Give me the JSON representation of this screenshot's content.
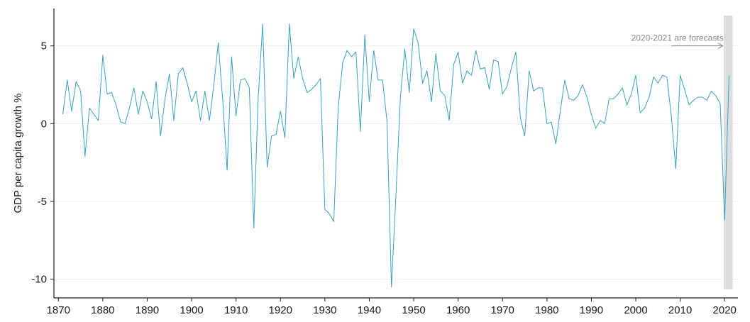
{
  "chart_data": {
    "type": "line",
    "title": "",
    "xlabel": "",
    "ylabel": "GDP per capita growth %",
    "xlim": [
      1869,
      2023
    ],
    "ylim": [
      -11.2,
      7.4
    ],
    "x_ticks": [
      1870,
      1880,
      1890,
      1900,
      1910,
      1920,
      1930,
      1940,
      1950,
      1960,
      1970,
      1980,
      1990,
      2000,
      2010,
      2020
    ],
    "y_ticks": [
      5,
      0,
      -5,
      -10
    ],
    "y_tick_labels": [
      "5",
      "0",
      "-5",
      "-10"
    ],
    "grid": "horizontal",
    "line_color": "#3aa0c0",
    "shade_color": "#dddddd",
    "forecast_band": [
      2019.8,
      2021.8
    ],
    "annotation": "2020-2021 are forecasts",
    "annotation_arrow": {
      "from": [
        2008,
        5.0
      ],
      "to": [
        2019.6,
        5.0
      ]
    },
    "series": [
      {
        "x": [
          1871,
          1872,
          1873,
          1874,
          1875,
          1876,
          1877,
          1878,
          1879,
          1880,
          1881,
          1882,
          1883,
          1884,
          1885,
          1886,
          1887,
          1888,
          1889,
          1890,
          1891,
          1892,
          1893,
          1894,
          1895,
          1896,
          1897,
          1898,
          1899,
          1900,
          1901,
          1902,
          1903,
          1904,
          1905,
          1906,
          1907,
          1908,
          1909,
          1910,
          1911,
          1912,
          1913,
          1914,
          1915,
          1916,
          1917,
          1918,
          1919,
          1920,
          1921,
          1922,
          1923,
          1924,
          1925,
          1926,
          1927,
          1928,
          1929,
          1930,
          1931,
          1932,
          1933,
          1934,
          1935,
          1936,
          1937,
          1938,
          1939,
          1940,
          1941,
          1942,
          1943,
          1944,
          1945,
          1946,
          1947,
          1948,
          1949,
          1950,
          1951,
          1952,
          1953,
          1954,
          1955,
          1956,
          1957,
          1958,
          1959,
          1960,
          1961,
          1962,
          1963,
          1964,
          1965,
          1966,
          1967,
          1968,
          1969,
          1970,
          1971,
          1972,
          1973,
          1974,
          1975,
          1976,
          1977,
          1978,
          1979,
          1980,
          1981,
          1982,
          1983,
          1984,
          1985,
          1986,
          1987,
          1988,
          1989,
          1990,
          1991,
          1992,
          1993,
          1994,
          1995,
          1996,
          1997,
          1998,
          1999,
          2000,
          2001,
          2002,
          2003,
          2004,
          2005,
          2006,
          2007,
          2008,
          2009,
          2010,
          2011,
          2012,
          2013,
          2014,
          2015,
          2016,
          2017,
          2018,
          2019,
          2020,
          2021
        ],
        "values": [
          0.6,
          2.8,
          0.8,
          2.7,
          2.1,
          -2.1,
          1.0,
          0.6,
          0.2,
          4.4,
          1.9,
          2.0,
          1.2,
          0.1,
          0.0,
          1.0,
          2.3,
          0.6,
          2.1,
          1.4,
          0.3,
          2.7,
          -0.8,
          1.6,
          3.2,
          0.2,
          3.2,
          3.6,
          2.6,
          1.4,
          2.1,
          0.2,
          2.1,
          0.2,
          2.5,
          5.2,
          1.5,
          -3.0,
          4.3,
          0.5,
          2.8,
          2.9,
          2.3,
          -6.7,
          1.7,
          6.4,
          -2.8,
          -0.8,
          -0.7,
          0.8,
          -0.9,
          6.4,
          2.9,
          4.3,
          2.9,
          2.0,
          2.2,
          2.5,
          2.9,
          -5.5,
          -5.8,
          -6.3,
          1.0,
          3.9,
          4.7,
          4.3,
          4.6,
          -0.5,
          5.7,
          1.4,
          4.7,
          2.8,
          2.8,
          0.1,
          -10.5,
          -4.6,
          1.7,
          4.8,
          2.0,
          6.1,
          5.2,
          2.6,
          3.4,
          1.4,
          4.5,
          2.1,
          1.8,
          0.2,
          3.8,
          4.6,
          2.6,
          3.4,
          3.1,
          4.7,
          3.5,
          3.6,
          2.2,
          4.1,
          4.0,
          1.9,
          2.4,
          3.6,
          4.6,
          0.4,
          -0.8,
          3.4,
          2.1,
          2.3,
          2.3,
          0.0,
          0.1,
          -1.3,
          0.8,
          2.8,
          1.6,
          1.5,
          1.8,
          2.5,
          1.7,
          0.6,
          -0.3,
          0.2,
          0.0,
          1.6,
          1.6,
          1.9,
          2.3,
          1.2,
          1.9,
          3.1,
          0.7,
          1.0,
          1.7,
          3.0,
          2.6,
          3.1,
          3.0,
          0.5,
          -2.9,
          3.1,
          2.2,
          1.2,
          1.5,
          1.7,
          1.7,
          1.5,
          2.1,
          1.8,
          1.3,
          -6.2,
          3.1
        ]
      }
    ]
  }
}
